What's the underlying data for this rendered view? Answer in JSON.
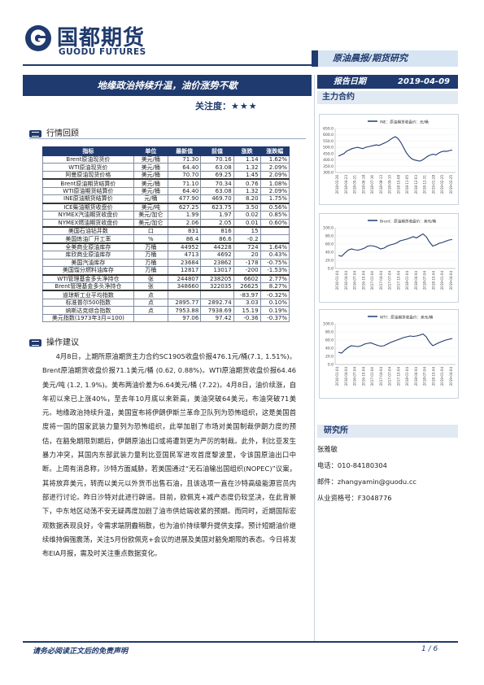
{
  "header": {
    "logo_cn": "国都期货",
    "logo_en": "GUODU FUTURES",
    "report_type": "原油晨报/期货研究",
    "title": "地缘政治持续升温，油价涨势不歇",
    "date_label": "报告日期",
    "date": "2019-04-09",
    "focus_label": "关注度：",
    "focus_stars": "★★★",
    "main_contract_label": "主力合约"
  },
  "market_review": {
    "heading": "行情回顾",
    "columns": [
      "指标",
      "单位",
      "最新值",
      "前值",
      "涨跌",
      "涨跌幅"
    ],
    "groups": [
      [
        [
          "Brent原油现货价",
          "美元/桶",
          "71.30",
          "70.16",
          "1.14",
          "1.62%"
        ],
        [
          "WTI原油现货价",
          "美元/桶",
          "64.40",
          "63.08",
          "1.32",
          "2.09%"
        ],
        [
          "阿曼原油现货价格",
          "美元/桶",
          "70.70",
          "69.25",
          "1.45",
          "2.09%"
        ]
      ],
      [
        [
          "Brent原油期货结算价",
          "美元/桶",
          "71.10",
          "70.34",
          "0.76",
          "1.08%"
        ],
        [
          "WTI原油期货结算价",
          "美元/桶",
          "64.40",
          "63.08",
          "1.32",
          "2.09%"
        ],
        [
          "INE原油期货结算价",
          "元/桶",
          "477.90",
          "469.70",
          "8.20",
          "1.75%"
        ]
      ],
      [
        [
          "ICE柴油期货收盘价",
          "美元/吨",
          "627.25",
          "623.75",
          "3.50",
          "0.56%"
        ],
        [
          "NYMEX汽油期货收盘价",
          "美元/加仑",
          "1.99",
          "1.97",
          "0.02",
          "0.85%"
        ],
        [
          "NYMEX燃油期货收盘价",
          "美元/加仑",
          "2.06",
          "2.05",
          "0.01",
          "0.60%"
        ]
      ],
      [
        [
          "美国石油钻井数",
          "口",
          "831",
          "816",
          "15",
          ""
        ],
        [
          "美国炼油厂开工率",
          "%",
          "86.4",
          "86.6",
          "-0.2",
          ""
        ]
      ],
      [
        [
          "全美商业原油库存",
          "万桶",
          "44952",
          "44228",
          "724",
          "1.64%"
        ],
        [
          "库欣商业原油库存",
          "万桶",
          "4713",
          "4692",
          "20",
          "0.43%"
        ],
        [
          "美国汽油库存",
          "万桶",
          "23684",
          "23862",
          "-178",
          "-0.75%"
        ],
        [
          "美国馏分燃料油库存",
          "万桶",
          "12817",
          "13017",
          "-200",
          "-1.53%"
        ]
      ],
      [
        [
          "WTI管理基金多头净持仓",
          "张",
          "244807",
          "238205",
          "6602",
          "2.77%"
        ],
        [
          "Brent管理基金多头净持仓",
          "张",
          "348660",
          "322035",
          "26625",
          "8.27%"
        ]
      ],
      [
        [
          "道琼斯工业平均指数",
          "点",
          "",
          "",
          "-83.97",
          "-0.32%"
        ],
        [
          "标准普尔500指数",
          "点",
          "2895.77",
          "2892.74",
          "3.03",
          "0.10%"
        ],
        [
          "纳斯达克综合指数",
          "点",
          "7953.88",
          "7938.69",
          "15.19",
          "0.19%"
        ],
        [
          "美元指数(1973年3月=100)",
          "",
          "97.06",
          "97.42",
          "-0.36",
          "-0.37%"
        ]
      ]
    ]
  },
  "operation": {
    "heading": "操作建议",
    "text": "4月8日，上期所原油期货主力合约SC1905收盘价报476.1元/桶(7.1, 1.51%)。Brent原油期货收盘价报71.1美元/桶 (0.62, 0.88%)。WTI原油期货收盘价报64.46美元/吨 (1.2, 1.9%)。美布两油价差为6.64美元/桶 (7.22)。4月8日，油价续涨，自年初以来已上涨40%，至去年10月底以来新高，美油突破64美元，布油突破71美元。地缘政治持续升温，美国宣布将伊朗伊斯兰革命卫队列为恐怖组织，这是美国首度将一国的国家武装力量列为恐怖组织，此举加剧了市场对美国制裁伊朗力度的预估，在豁免期限到期后，伊朗原油出口或将遭到更为严厉的制裁。此外，利比亚发生暴力冲突，其国内东部武装力量利比亚国民军进攻首度黎波里，令该国原油出口中断。上周有消息称，沙特方面威胁，若美国通过“无石油输出国组织(NOPEC)”议案，其将放弃美元，转而以美元以外货币出售石油，且该选项一直在沙特高级能源官员内部进行讨论。昨日沙特对此进行辟谣。目前，欧佩克+减产态度仍较坚决，在此背景下，中东地区动荡不安无疑再度加剧了油市供给端收紧的预期。而同时，近期国际宏观数据表现良好，令需求端阴霾稍散，也为油价持续攀升提供支撑。预计短期油价继续维持偏强震荡，关注5月份欧佩克+会议的进展及美国对豁免期限的表态。今日将发布EIA月报，需及时关注重点数据变化。"
  },
  "researcher": {
    "heading": "研究所",
    "name": "张雅敏",
    "phone": "电话：010-84180304",
    "email": "邮件：zhangyamin@guodu.cc",
    "license": "从业资格号：F3048776"
  },
  "footer": {
    "disclaimer": "请务必阅读正文后的免责声明",
    "page": "1 / 6"
  },
  "chart_data": [
    {
      "type": "line",
      "legend": "INE：原油期货收盘价：元/桶",
      "yticks": [
        "650.0",
        "600.0",
        "550.0",
        "500.0",
        "450.0",
        "400.0",
        "350.0",
        "300.0"
      ],
      "ylim": [
        300,
        650
      ],
      "xticks": [
        "2018-03-26",
        "2018-04-23",
        "2018-05-21",
        "2018-06-18",
        "2018-07-16",
        "2018-08-13",
        "2018-09-10",
        "2018-10-08",
        "2018-11-05",
        "2018-12-03",
        "2018-12-31",
        "2019-01-28",
        "2019-02-25",
        "2019-03-25"
      ],
      "values": [
        430,
        440,
        450,
        470,
        480,
        490,
        495,
        500,
        495,
        490,
        500,
        505,
        510,
        515,
        520,
        515,
        525,
        535,
        545,
        560,
        575,
        585,
        570,
        540,
        500,
        460,
        430,
        410,
        400,
        395,
        390,
        400,
        415,
        430,
        440,
        445,
        440,
        455,
        465,
        470,
        468,
        475,
        478
      ]
    },
    {
      "type": "line",
      "legend": "Brent：原油期货收盘价：美元/桶",
      "yticks": [
        "100.0",
        "80.0",
        "60.0",
        "40.0",
        "20.0",
        "0.0"
      ],
      "ylim": [
        0,
        100
      ],
      "xticks": [
        "2016-01-04",
        "2016-04-04",
        "2016-07-04",
        "2016-10-04",
        "2017-01-04",
        "2017-04-04",
        "2017-07-04",
        "2017-10-04",
        "2018-01-04",
        "2018-04-04",
        "2018-07-04",
        "2018-10-04",
        "2019-01-04",
        "2019-04-04"
      ],
      "values": [
        32,
        30,
        38,
        45,
        48,
        46,
        45,
        47,
        50,
        55,
        56,
        55,
        52,
        48,
        50,
        55,
        58,
        60,
        63,
        68,
        70,
        72,
        75,
        78,
        75,
        80,
        85,
        78,
        65,
        55,
        58,
        62,
        64,
        67,
        70,
        71
      ]
    },
    {
      "type": "line",
      "legend": "WTI：原油期货收盘价：美元/桶",
      "yticks": [
        "100.0",
        "80.0",
        "60.0",
        "40.0",
        "20.0",
        "0.0"
      ],
      "ylim": [
        0,
        100
      ],
      "xticks": [
        "2016-01-04",
        "2016-04-04",
        "2016-07-04",
        "2016-10-04",
        "2017-01-04",
        "2017-04-04",
        "2017-07-04",
        "2017-10-04",
        "2018-01-04",
        "2018-04-04",
        "2018-07-04",
        "2018-10-04",
        "2019-01-04",
        "2019-04-04"
      ],
      "values": [
        30,
        28,
        36,
        42,
        46,
        45,
        44,
        46,
        50,
        52,
        53,
        50,
        47,
        45,
        46,
        50,
        54,
        57,
        60,
        63,
        66,
        68,
        70,
        69,
        70,
        72,
        75,
        68,
        55,
        46,
        50,
        54,
        57,
        60,
        62,
        64
      ]
    }
  ]
}
